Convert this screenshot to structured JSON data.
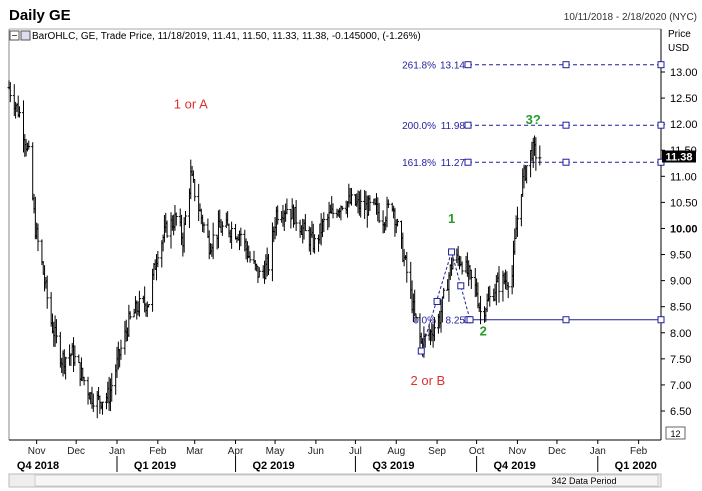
{
  "window": {
    "title": "Daily GE",
    "date_range": "10/11/2018 - 2/18/2020 (NYC)",
    "price_label": "Price",
    "currency_label": "USD",
    "legend": "BarOHLC, GE, Trade Price, 11/18/2019, 11.41, 11.50, 11.33, 11.38, -0.145000, (-1.26%)",
    "period_count": "12",
    "data_period": "342 Data Period"
  },
  "colors": {
    "bars": "#000000",
    "fib_lines": "#1f1fa0",
    "wave_red": "#e03030",
    "wave_green": "#2a9a2a",
    "price_badge": "#000000"
  },
  "chart_data": {
    "type": "bar",
    "subtype": "OHLC",
    "ylim": [
      6.0,
      13.4
    ],
    "y_ticks": [
      "6.50",
      "7.00",
      "7.50",
      "8.00",
      "8.50",
      "9.00",
      "9.50",
      "10.00",
      "10.50",
      "11.00",
      "11.50",
      "12.00",
      "12.50",
      "13.00"
    ],
    "x_months": [
      "Nov",
      "Dec",
      "Jan",
      "Feb",
      "Mar",
      "Apr",
      "May",
      "Jun",
      "Jul",
      "Aug",
      "Sep",
      "Oct",
      "Nov",
      "Dec",
      "Jan",
      "Feb"
    ],
    "x_quarters": [
      "Q4 2018",
      "Q1 2019",
      "Q2 2019",
      "Q3 2019",
      "Q4 2019",
      "Q1 2020"
    ],
    "last_price": "11.38",
    "price_path": [
      {
        "date": "2018-10-11",
        "close": 12.7
      },
      {
        "date": "2018-10-19",
        "close": 12.2
      },
      {
        "date": "2018-10-26",
        "close": 11.4
      },
      {
        "date": "2018-10-31",
        "close": 10.0
      },
      {
        "date": "2018-11-05",
        "close": 9.3
      },
      {
        "date": "2018-11-12",
        "close": 8.2
      },
      {
        "date": "2018-11-20",
        "close": 7.5
      },
      {
        "date": "2018-11-28",
        "close": 7.6
      },
      {
        "date": "2018-12-05",
        "close": 7.2
      },
      {
        "date": "2018-12-12",
        "close": 6.8
      },
      {
        "date": "2018-12-18",
        "close": 6.7
      },
      {
        "date": "2018-12-26",
        "close": 6.8
      },
      {
        "date": "2019-01-03",
        "close": 7.6
      },
      {
        "date": "2019-01-10",
        "close": 8.2
      },
      {
        "date": "2019-01-17",
        "close": 8.5
      },
      {
        "date": "2019-01-25",
        "close": 8.6
      },
      {
        "date": "2019-02-01",
        "close": 9.6
      },
      {
        "date": "2019-02-08",
        "close": 10.0
      },
      {
        "date": "2019-02-15",
        "close": 10.2
      },
      {
        "date": "2019-02-20",
        "close": 9.8
      },
      {
        "date": "2019-02-26",
        "close": 11.0
      },
      {
        "date": "2019-03-05",
        "close": 10.3
      },
      {
        "date": "2019-03-12",
        "close": 9.7
      },
      {
        "date": "2019-03-20",
        "close": 10.0
      },
      {
        "date": "2019-03-28",
        "close": 10.0
      },
      {
        "date": "2019-04-05",
        "close": 9.9
      },
      {
        "date": "2019-04-12",
        "close": 9.4
      },
      {
        "date": "2019-04-19",
        "close": 9.1
      },
      {
        "date": "2019-04-26",
        "close": 9.3
      },
      {
        "date": "2019-05-02",
        "close": 10.3
      },
      {
        "date": "2019-05-10",
        "close": 10.4
      },
      {
        "date": "2019-05-17",
        "close": 10.2
      },
      {
        "date": "2019-05-24",
        "close": 9.9
      },
      {
        "date": "2019-05-31",
        "close": 9.7
      },
      {
        "date": "2019-06-07",
        "close": 10.1
      },
      {
        "date": "2019-06-14",
        "close": 10.3
      },
      {
        "date": "2019-06-21",
        "close": 10.5
      },
      {
        "date": "2019-06-28",
        "close": 10.5
      },
      {
        "date": "2019-07-08",
        "close": 10.4
      },
      {
        "date": "2019-07-15",
        "close": 10.4
      },
      {
        "date": "2019-07-22",
        "close": 10.2
      },
      {
        "date": "2019-07-29",
        "close": 10.5
      },
      {
        "date": "2019-08-02",
        "close": 10.0
      },
      {
        "date": "2019-08-08",
        "close": 9.3
      },
      {
        "date": "2019-08-15",
        "close": 8.3
      },
      {
        "date": "2019-08-20",
        "close": 7.8
      },
      {
        "date": "2019-08-27",
        "close": 8.0
      },
      {
        "date": "2019-09-03",
        "close": 8.3
      },
      {
        "date": "2019-09-09",
        "close": 9.0
      },
      {
        "date": "2019-09-13",
        "close": 9.4
      },
      {
        "date": "2019-09-19",
        "close": 9.4
      },
      {
        "date": "2019-09-25",
        "close": 9.1
      },
      {
        "date": "2019-10-01",
        "close": 8.8
      },
      {
        "date": "2019-10-04",
        "close": 8.4
      },
      {
        "date": "2019-10-10",
        "close": 8.6
      },
      {
        "date": "2019-10-16",
        "close": 8.9
      },
      {
        "date": "2019-10-22",
        "close": 9.0
      },
      {
        "date": "2019-10-28",
        "close": 9.1
      },
      {
        "date": "2019-10-31",
        "close": 10.0
      },
      {
        "date": "2019-11-04",
        "close": 10.8
      },
      {
        "date": "2019-11-08",
        "close": 11.2
      },
      {
        "date": "2019-11-12",
        "close": 11.5
      },
      {
        "date": "2019-11-18",
        "close": 11.38
      }
    ],
    "fib_levels": [
      {
        "label": "261.8%",
        "value": 13.14,
        "value_label": "13.14"
      },
      {
        "label": "200.0%",
        "value": 11.98,
        "value_label": "11.98"
      },
      {
        "label": "161.8%",
        "value": 11.27,
        "value_label": "11.27"
      },
      {
        "label": "0.0%",
        "value": 8.25,
        "value_label": "8.25"
      }
    ],
    "annotations": [
      {
        "text": "1 or A",
        "color": "red"
      },
      {
        "text": "2 or B",
        "color": "red"
      },
      {
        "text": "1",
        "color": "green"
      },
      {
        "text": "2",
        "color": "green"
      },
      {
        "text": "3?",
        "color": "green"
      }
    ]
  }
}
